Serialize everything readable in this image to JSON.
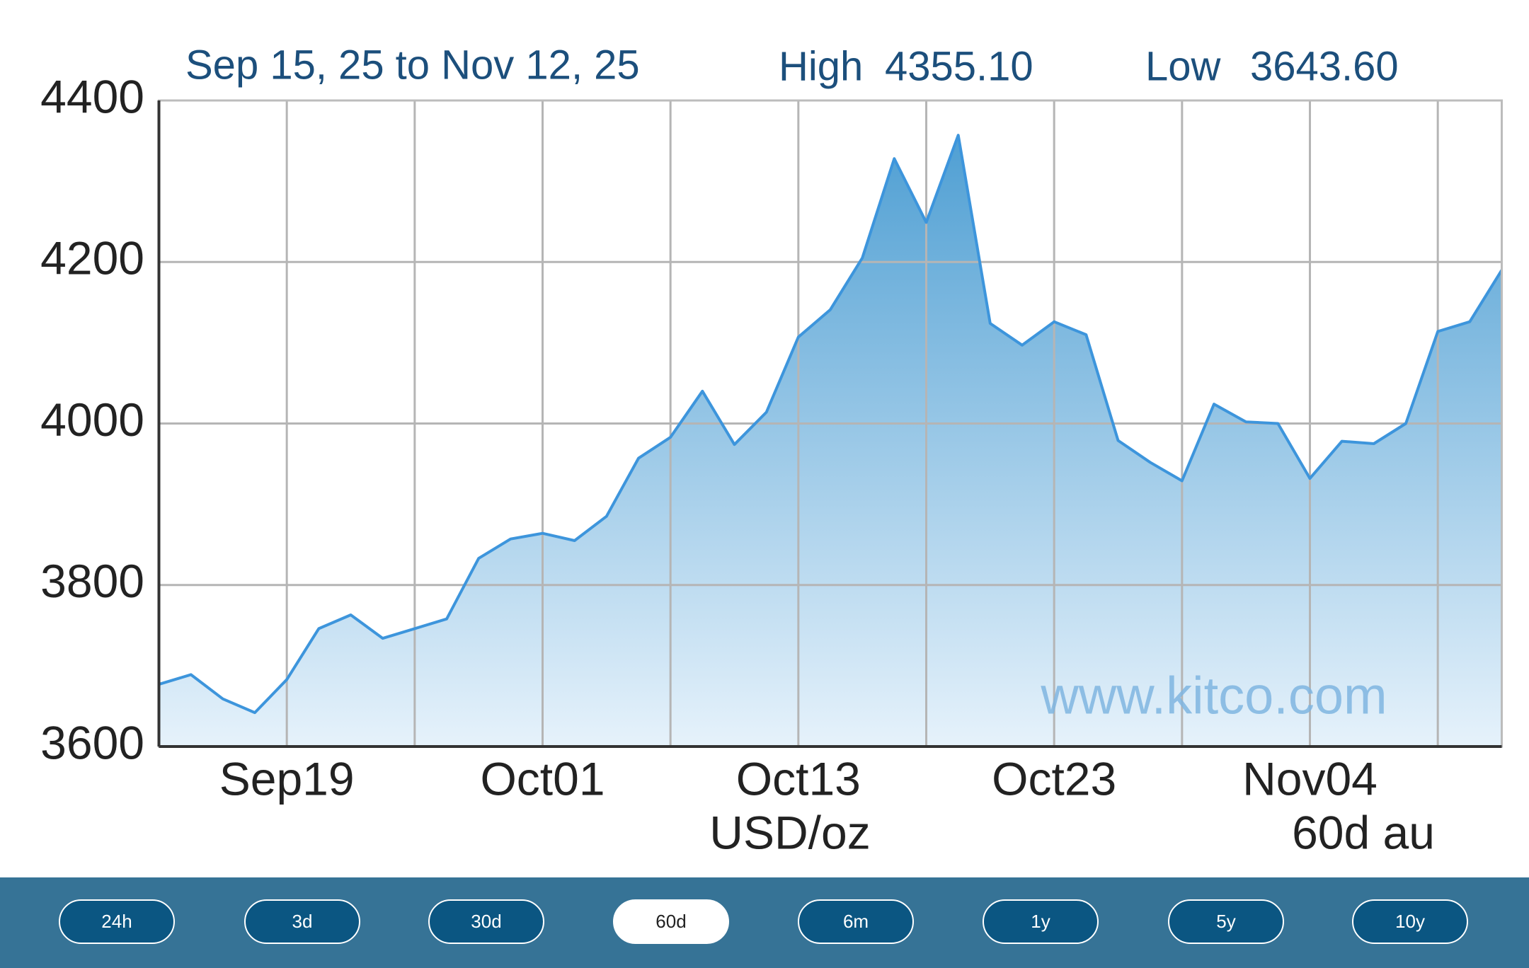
{
  "chart_data": {
    "type": "area",
    "range_label": "Sep 15, 25 to Nov 12, 25",
    "high_label": "High",
    "high_value": "4355.10",
    "low_label": "Low",
    "low_value": "3643.60",
    "y_unit": "USD/oz",
    "chart_code": "60d au",
    "watermark": "www.kitco.com",
    "categories": [
      null,
      null,
      null,
      null,
      "Sep19",
      null,
      null,
      null,
      null,
      null,
      null,
      null,
      "Oct01",
      null,
      null,
      null,
      null,
      null,
      null,
      null,
      "Oct13",
      null,
      null,
      null,
      null,
      null,
      null,
      null,
      "Oct23",
      null,
      null,
      null,
      null,
      null,
      null,
      null,
      "Nov04",
      null,
      null,
      null,
      null,
      null,
      null
    ],
    "values": [
      3677,
      3689,
      3659,
      3642,
      3683,
      3746,
      3763,
      3734,
      3746,
      3758,
      3833,
      3857,
      3864,
      3855,
      3885,
      3957,
      3983,
      4040,
      3974,
      4014,
      4107,
      4141,
      4205,
      4328,
      4249,
      4357,
      4124,
      4097,
      4126,
      4110,
      3979,
      3952,
      3929,
      4024,
      4002,
      4000,
      3932,
      3978,
      3975,
      4000,
      4114,
      4126,
      4190
    ],
    "color": "#3d95dc",
    "ylim": [
      3600,
      4400
    ],
    "yticks": [
      3600,
      3800,
      4000,
      4200,
      4400
    ],
    "grid": true,
    "x_grid_every": 4
  },
  "range_buttons": [
    "24h",
    "3d",
    "30d",
    "60d",
    "6m",
    "1y",
    "5y",
    "10y"
  ],
  "selected_button": 3
}
